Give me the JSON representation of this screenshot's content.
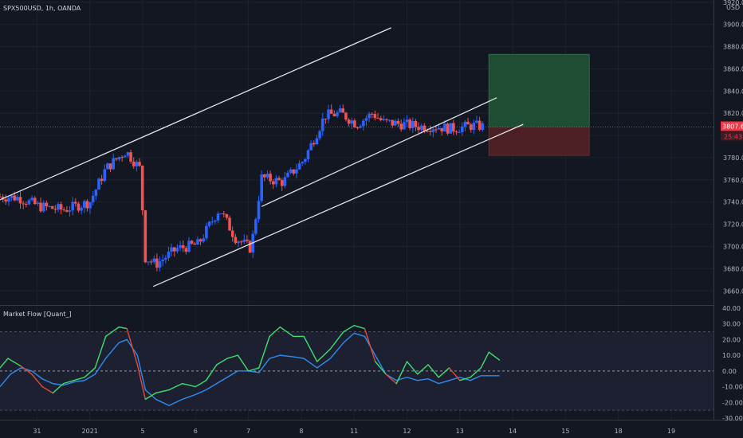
{
  "header": {
    "symbol_line": "SPX500USD, 1h, OANDA",
    "currency": "USD"
  },
  "indicator": {
    "title": "Market Flow [Quant_]"
  },
  "price_tag": {
    "value": "3807.6",
    "countdown": "25:43"
  },
  "colors": {
    "background": "#131722",
    "grid": "#1e222d",
    "up": "#26a69a",
    "up_candle": "#2962ff",
    "down": "#ef5350",
    "trendline": "#e0e3eb",
    "target_zone": "#1f4d33",
    "stop_zone": "#4c1f24",
    "price_line": "#c0392b",
    "flow_line": "#3ce26b",
    "signal_line": "#2f8cf0",
    "flow_down": "#e34a3b"
  },
  "chart_data": [
    {
      "type": "candlestick",
      "title": "",
      "symbol": "SPX500USD",
      "interval": "1h",
      "exchange": "OANDA",
      "current_price": 3807.6,
      "countdown": "25:43",
      "y_ticks": [
        "3920.0",
        "3900.0",
        "3880.0",
        "3860.0",
        "3840.0",
        "3820.0",
        "3800.0",
        "3780.0",
        "3760.0",
        "3740.0",
        "3720.0",
        "3700.0",
        "3680.0",
        "3660.0"
      ],
      "y_tick_values": [
        3920,
        3900,
        3880,
        3860,
        3840,
        3820,
        3800,
        3780,
        3760,
        3740,
        3720,
        3700,
        3680,
        3660
      ],
      "ylim": [
        3648,
        3922
      ],
      "x_ticks": [
        "31",
        "2021",
        "5",
        "6",
        "7",
        "8",
        "11",
        "12",
        "13",
        "14",
        "15",
        "18",
        "19"
      ],
      "x_tick_pos": [
        0,
        1,
        2,
        3,
        4,
        5,
        6,
        7,
        8,
        9,
        10,
        11,
        12
      ],
      "xlim": [
        -0.7,
        12.8
      ],
      "price_path": [
        [
          -0.7,
          3745
        ],
        [
          -0.35,
          3744
        ],
        [
          0.05,
          3736
        ],
        [
          0.5,
          3733
        ],
        [
          1.0,
          3740
        ],
        [
          1.3,
          3770
        ],
        [
          1.68,
          3786
        ],
        [
          1.95,
          3770
        ],
        [
          2.05,
          3690
        ],
        [
          2.25,
          3684
        ],
        [
          2.65,
          3698
        ],
        [
          3.05,
          3702
        ],
        [
          3.45,
          3734
        ],
        [
          3.75,
          3708
        ],
        [
          4.05,
          3698
        ],
        [
          4.25,
          3762
        ],
        [
          4.65,
          3758
        ],
        [
          5.05,
          3778
        ],
        [
          5.45,
          3818
        ],
        [
          5.75,
          3820
        ],
        [
          6.05,
          3810
        ],
        [
          6.35,
          3820
        ],
        [
          6.55,
          3812
        ],
        [
          6.95,
          3810
        ],
        [
          7.25,
          3808
        ],
        [
          7.55,
          3808
        ],
        [
          7.85,
          3806
        ],
        [
          8.25,
          3809
        ],
        [
          8.45,
          3808
        ]
      ],
      "trendlines": [
        {
          "from": [
            -0.7,
            3742
          ],
          "to": [
            6.7,
            3897
          ]
        },
        {
          "from": [
            2.2,
            3664
          ],
          "to": [
            9.2,
            3810
          ]
        },
        {
          "from": [
            4.25,
            3736
          ],
          "to": [
            8.7,
            3834
          ]
        }
      ],
      "position": {
        "entry": 3807.6,
        "target": 3873,
        "stop": 3782,
        "x_start": 8.55,
        "x_end": 10.45
      }
    },
    {
      "type": "line",
      "title": "Market Flow [Quant_]",
      "y_ticks": [
        "40.00",
        "30.00",
        "20.00",
        "10.00",
        "0.00",
        "-10.00",
        "-20.00",
        "-30.00"
      ],
      "y_tick_values": [
        40,
        30,
        20,
        10,
        0,
        -10,
        -20,
        -30
      ],
      "ylim": [
        -31,
        41
      ],
      "levels": [
        25,
        0,
        -25
      ],
      "series": [
        {
          "role": "flow",
          "color_up": "#3ce26b",
          "color_down": "#e34a3b",
          "x": [
            -0.7,
            -0.55,
            -0.3,
            -0.1,
            0.1,
            0.3,
            0.5,
            0.7,
            0.9,
            1.1,
            1.3,
            1.55,
            1.7,
            1.9,
            2.05,
            2.25,
            2.5,
            2.75,
            3.0,
            3.2,
            3.4,
            3.6,
            3.8,
            4.0,
            4.2,
            4.4,
            4.6,
            4.85,
            5.05,
            5.3,
            5.55,
            5.8,
            6.0,
            6.2,
            6.4,
            6.6,
            6.8,
            7.0,
            7.2,
            7.4,
            7.6,
            7.8,
            8.0,
            8.2,
            8.4,
            8.55,
            8.75
          ],
          "y": [
            2,
            8,
            3,
            -2,
            -10,
            -14,
            -8,
            -6,
            -4,
            2,
            22,
            28,
            27,
            4,
            -18,
            -14,
            -12,
            -8,
            -10,
            -6,
            4,
            8,
            10,
            0,
            2,
            22,
            28,
            22,
            22,
            6,
            14,
            25,
            29,
            27,
            6,
            -2,
            -8,
            6,
            -2,
            4,
            -4,
            2,
            -6,
            -4,
            2,
            12,
            7
          ]
        },
        {
          "role": "signal",
          "color": "#2f8cf0",
          "x": [
            -0.7,
            -0.5,
            -0.3,
            -0.1,
            0.1,
            0.3,
            0.5,
            0.7,
            0.9,
            1.1,
            1.3,
            1.55,
            1.7,
            1.9,
            2.05,
            2.25,
            2.5,
            2.75,
            3.0,
            3.2,
            3.4,
            3.6,
            3.8,
            4.0,
            4.2,
            4.4,
            4.6,
            4.85,
            5.05,
            5.3,
            5.55,
            5.8,
            6.0,
            6.2,
            6.4,
            6.6,
            6.8,
            7.0,
            7.2,
            7.4,
            7.6,
            7.8,
            8.0,
            8.2,
            8.4,
            8.55,
            8.75
          ],
          "y": [
            -10,
            -2,
            2,
            0,
            -5,
            -8,
            -9,
            -7,
            -6,
            -2,
            8,
            18,
            20,
            10,
            -12,
            -18,
            -22,
            -18,
            -15,
            -12,
            -8,
            -4,
            0,
            0,
            -1,
            8,
            10,
            9,
            8,
            2,
            8,
            18,
            24,
            22,
            10,
            -2,
            -6,
            -4,
            -6,
            -5,
            -8,
            -6,
            -4,
            -6,
            -3,
            -3,
            -3
          ]
        }
      ]
    }
  ]
}
